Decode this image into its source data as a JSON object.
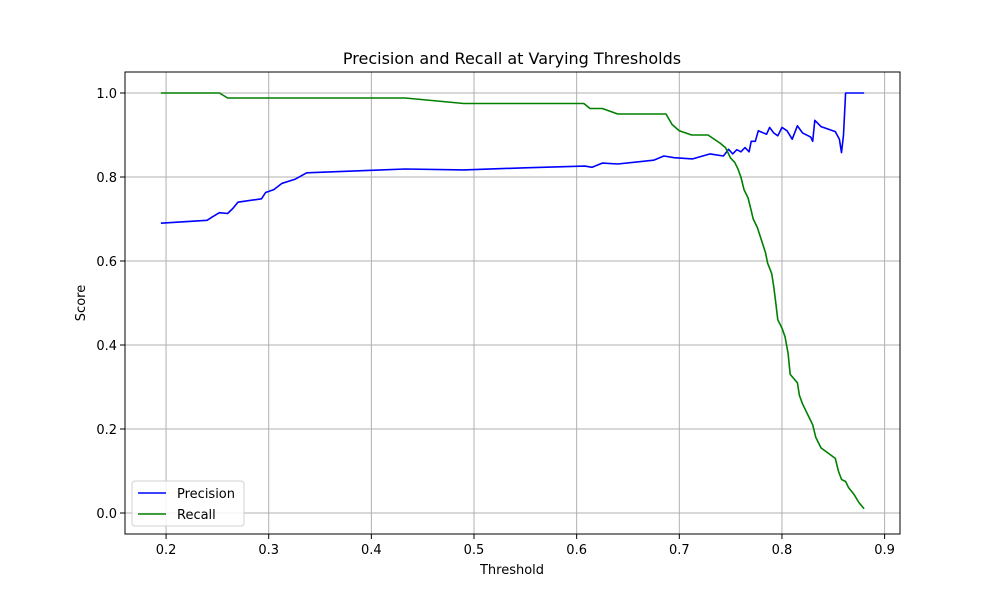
{
  "chart_data": {
    "type": "line",
    "title": "Precision and Recall at Varying Thresholds",
    "xlabel": "Threshold",
    "ylabel": "Score",
    "xlim": [
      0.16,
      0.915
    ],
    "ylim": [
      -0.05,
      1.05
    ],
    "xticks": [
      0.2,
      0.3,
      0.4,
      0.5,
      0.6,
      0.7,
      0.8,
      0.9
    ],
    "yticks": [
      0.0,
      0.2,
      0.4,
      0.6,
      0.8,
      1.0
    ],
    "xtick_labels": [
      "0.2",
      "0.3",
      "0.4",
      "0.5",
      "0.6",
      "0.7",
      "0.8",
      "0.9"
    ],
    "ytick_labels": [
      "0.0",
      "0.2",
      "0.4",
      "0.6",
      "0.8",
      "1.0"
    ],
    "grid": true,
    "legend_position": "lower-left",
    "series": [
      {
        "name": "Precision",
        "color": "#0000ff",
        "points": [
          [
            0.195,
            0.69
          ],
          [
            0.24,
            0.697
          ],
          [
            0.245,
            0.705
          ],
          [
            0.252,
            0.715
          ],
          [
            0.26,
            0.713
          ],
          [
            0.265,
            0.725
          ],
          [
            0.27,
            0.74
          ],
          [
            0.293,
            0.748
          ],
          [
            0.297,
            0.763
          ],
          [
            0.305,
            0.77
          ],
          [
            0.313,
            0.785
          ],
          [
            0.326,
            0.795
          ],
          [
            0.337,
            0.81
          ],
          [
            0.4,
            0.816
          ],
          [
            0.433,
            0.819
          ],
          [
            0.49,
            0.817
          ],
          [
            0.55,
            0.822
          ],
          [
            0.608,
            0.826
          ],
          [
            0.615,
            0.823
          ],
          [
            0.625,
            0.833
          ],
          [
            0.64,
            0.831
          ],
          [
            0.675,
            0.84
          ],
          [
            0.685,
            0.85
          ],
          [
            0.695,
            0.846
          ],
          [
            0.713,
            0.843
          ],
          [
            0.73,
            0.855
          ],
          [
            0.743,
            0.85
          ],
          [
            0.748,
            0.866
          ],
          [
            0.752,
            0.855
          ],
          [
            0.756,
            0.865
          ],
          [
            0.76,
            0.86
          ],
          [
            0.764,
            0.87
          ],
          [
            0.768,
            0.86
          ],
          [
            0.77,
            0.885
          ],
          [
            0.774,
            0.885
          ],
          [
            0.777,
            0.91
          ],
          [
            0.785,
            0.902
          ],
          [
            0.788,
            0.918
          ],
          [
            0.792,
            0.905
          ],
          [
            0.796,
            0.898
          ],
          [
            0.8,
            0.918
          ],
          [
            0.805,
            0.91
          ],
          [
            0.81,
            0.89
          ],
          [
            0.815,
            0.922
          ],
          [
            0.82,
            0.905
          ],
          [
            0.828,
            0.895
          ],
          [
            0.83,
            0.885
          ],
          [
            0.832,
            0.935
          ],
          [
            0.838,
            0.92
          ],
          [
            0.852,
            0.908
          ],
          [
            0.856,
            0.89
          ],
          [
            0.858,
            0.858
          ],
          [
            0.86,
            0.9
          ],
          [
            0.862,
            1.0
          ],
          [
            0.88,
            1.0
          ]
        ]
      },
      {
        "name": "Recall",
        "color": "#008000",
        "points": [
          [
            0.195,
            1.0
          ],
          [
            0.252,
            1.0
          ],
          [
            0.26,
            0.988
          ],
          [
            0.433,
            0.988
          ],
          [
            0.49,
            0.975
          ],
          [
            0.607,
            0.975
          ],
          [
            0.613,
            0.963
          ],
          [
            0.625,
            0.963
          ],
          [
            0.64,
            0.95
          ],
          [
            0.687,
            0.95
          ],
          [
            0.693,
            0.925
          ],
          [
            0.7,
            0.91
          ],
          [
            0.712,
            0.9
          ],
          [
            0.728,
            0.9
          ],
          [
            0.74,
            0.88
          ],
          [
            0.745,
            0.87
          ],
          [
            0.75,
            0.845
          ],
          [
            0.754,
            0.835
          ],
          [
            0.757,
            0.82
          ],
          [
            0.76,
            0.8
          ],
          [
            0.763,
            0.77
          ],
          [
            0.767,
            0.75
          ],
          [
            0.77,
            0.72
          ],
          [
            0.772,
            0.7
          ],
          [
            0.776,
            0.68
          ],
          [
            0.78,
            0.65
          ],
          [
            0.784,
            0.62
          ],
          [
            0.786,
            0.595
          ],
          [
            0.79,
            0.57
          ],
          [
            0.792,
            0.54
          ],
          [
            0.794,
            0.5
          ],
          [
            0.796,
            0.46
          ],
          [
            0.8,
            0.44
          ],
          [
            0.803,
            0.42
          ],
          [
            0.806,
            0.38
          ],
          [
            0.808,
            0.33
          ],
          [
            0.815,
            0.31
          ],
          [
            0.817,
            0.28
          ],
          [
            0.82,
            0.26
          ],
          [
            0.826,
            0.23
          ],
          [
            0.83,
            0.21
          ],
          [
            0.833,
            0.18
          ],
          [
            0.838,
            0.155
          ],
          [
            0.852,
            0.13
          ],
          [
            0.855,
            0.1
          ],
          [
            0.858,
            0.08
          ],
          [
            0.862,
            0.075
          ],
          [
            0.865,
            0.06
          ],
          [
            0.87,
            0.045
          ],
          [
            0.875,
            0.025
          ],
          [
            0.88,
            0.01
          ]
        ]
      }
    ]
  }
}
